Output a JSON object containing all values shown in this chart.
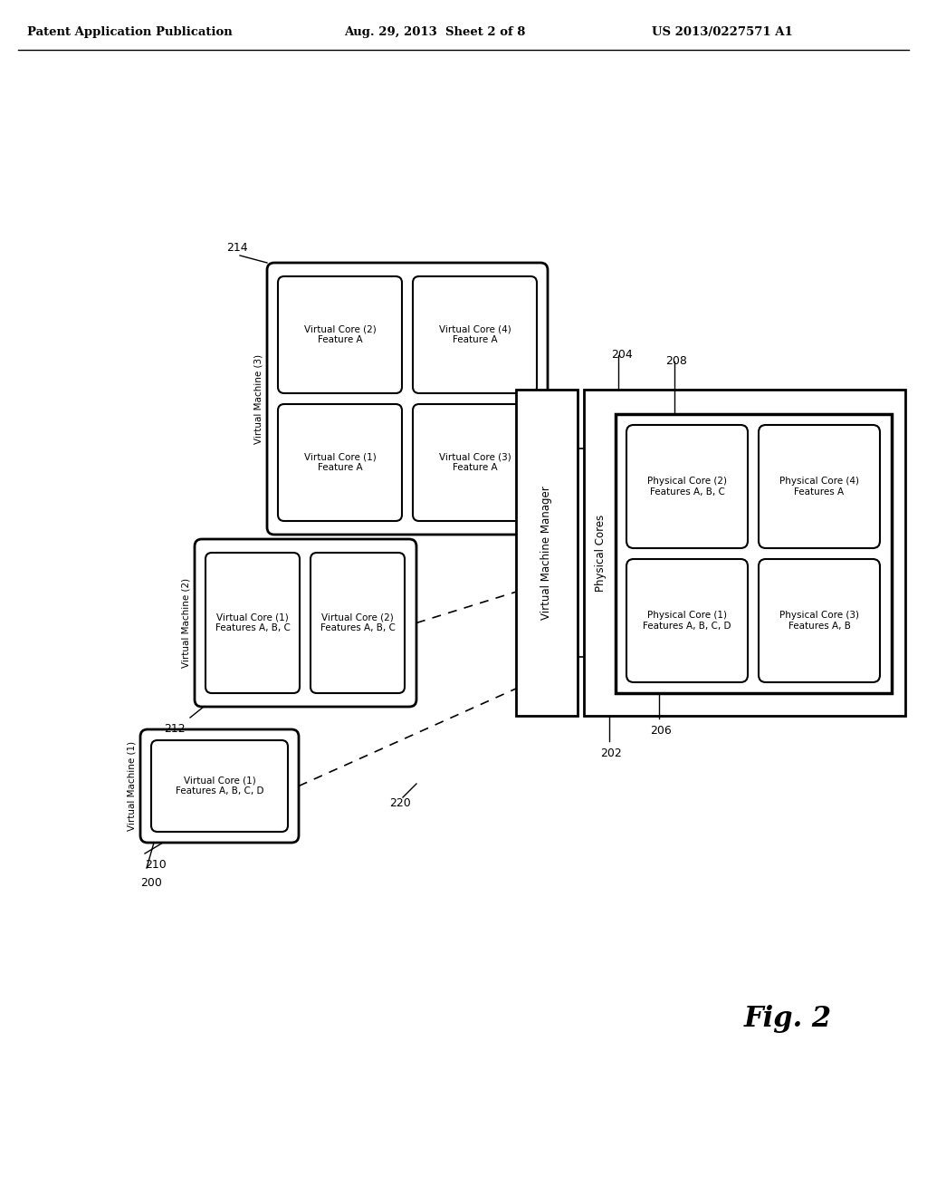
{
  "bg_color": "#ffffff",
  "header_left": "Patent Application Publication",
  "header_mid": "Aug. 29, 2013  Sheet 2 of 8",
  "header_right": "US 2013/0227571 A1",
  "fig_label": "Fig. 2",
  "ref_200": "200",
  "ref_210": "210",
  "ref_212": "212",
  "ref_214": "214",
  "ref_220": "220",
  "ref_202": "202",
  "ref_204": "204",
  "ref_206": "206",
  "ref_208": "208",
  "vm1_label": "Virtual Machine (1)",
  "vm1_core1": "Virtual Core (1)\nFeatures A, B, C, D",
  "vm2_label": "Virtual Machine (2)",
  "vm2_core1": "Virtual Core (1)\nFeatures A, B, C",
  "vm2_core2": "Virtual Core (2)\nFeatures A, B, C",
  "vm3_label": "Virtual Machine (3)",
  "vm3_core1": "Virtual Core (1)\nFeature A",
  "vm3_core2": "Virtual Core (2)\nFeature A",
  "vm3_core3": "Virtual Core (3)\nFeature A",
  "vm3_core4": "Virtual Core (4)\nFeature A",
  "vmm_label": "Virtual Machine Manager",
  "phys_outer_label": "Physical Cores",
  "phys1": "Physical Core (1)\nFeatures A, B, C, D",
  "phys2": "Physical Core (2)\nFeatures A, B, C",
  "phys3": "Physical Core (3)\nFeatures A, B",
  "phys4": "Physical Core (4)\nFeatures A"
}
